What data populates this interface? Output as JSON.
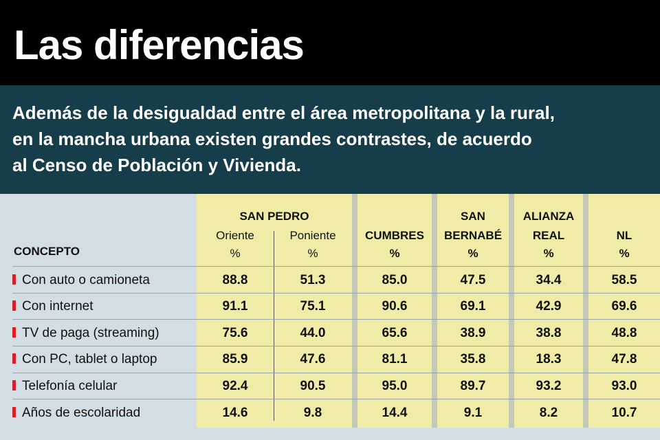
{
  "title": "Las diferencias",
  "subtitle": [
    "Además de la desigualdad entre el área metropolitana y la rural,",
    "en la mancha urbana existen grandes contrastes, de acuerdo",
    "al Censo de Población y Vivienda."
  ],
  "table": {
    "concept_header": "CONCEPTO",
    "group_header": "SAN PEDRO",
    "columns": [
      {
        "line1": "",
        "line2": "Oriente",
        "line3": "%"
      },
      {
        "line1": "",
        "line2": "Poniente",
        "line3": "%"
      },
      {
        "line1": "",
        "line2": "CUMBRES",
        "line3": "%"
      },
      {
        "line1": "SAN",
        "line2": "BERNABÉ",
        "line3": "%"
      },
      {
        "line1": "ALIANZA",
        "line2": "REAL",
        "line3": "%"
      },
      {
        "line1": "",
        "line2": "NL",
        "line3": "%"
      }
    ],
    "rows": [
      {
        "label": "Con auto o camioneta",
        "values": [
          "88.8",
          "51.3",
          "85.0",
          "47.5",
          "34.4",
          "58.5"
        ]
      },
      {
        "label": "Con internet",
        "values": [
          "91.1",
          "75.1",
          "90.6",
          "69.1",
          "42.9",
          "69.6"
        ]
      },
      {
        "label": "TV de paga (streaming)",
        "values": [
          "75.6",
          "44.0",
          "65.6",
          "38.9",
          "38.8",
          "48.8"
        ]
      },
      {
        "label": "Con PC, tablet o laptop",
        "values": [
          "85.9",
          "47.6",
          "81.1",
          "35.8",
          "18.3",
          "47.8"
        ]
      },
      {
        "label": "Telefonía celular",
        "values": [
          "92.4",
          "90.5",
          "95.0",
          "89.7",
          "93.2",
          "93.0"
        ]
      },
      {
        "label": "Años de escolaridad",
        "values": [
          "14.6",
          "9.8",
          "14.4",
          "9.1",
          "8.2",
          "10.7"
        ]
      }
    ]
  },
  "colors": {
    "header_bg": "#000000",
    "subtitle_bg": "#163d4a",
    "table_bg": "#d3dee4",
    "column_highlight": "#f1eba8",
    "bullet": "#d61f26"
  }
}
